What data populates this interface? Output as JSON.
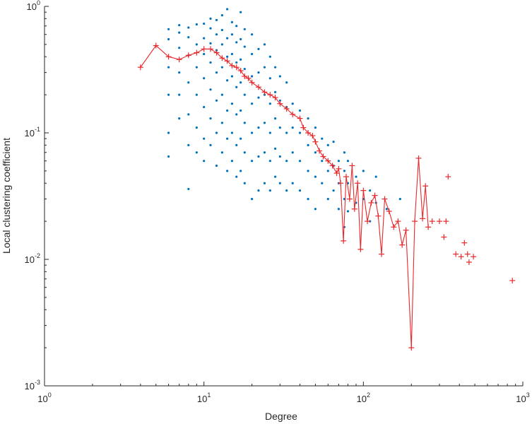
{
  "chart_data": {
    "type": "scatter",
    "xlabel": "Degree",
    "ylabel": "Local clustering coefficient",
    "xscale": "log",
    "yscale": "log",
    "xlim": [
      1,
      1000
    ],
    "ylim": [
      0.001,
      1
    ],
    "xticks": [
      {
        "value": 1,
        "base": "10",
        "exp": "0"
      },
      {
        "value": 10,
        "base": "10",
        "exp": "1"
      },
      {
        "value": 100,
        "base": "10",
        "exp": "2"
      },
      {
        "value": 1000,
        "base": "10",
        "exp": "3"
      }
    ],
    "yticks": [
      {
        "value": 0.001,
        "base": "10",
        "exp": "-3"
      },
      {
        "value": 0.01,
        "base": "10",
        "exp": "-2"
      },
      {
        "value": 0.1,
        "base": "10",
        "exp": "-1"
      },
      {
        "value": 1,
        "base": "10",
        "exp": "0"
      }
    ],
    "grid": false,
    "colors": {
      "scatter": "#0072BD",
      "mean": "#E8282B",
      "axis": "#262626"
    },
    "series": [
      {
        "style": "scatter",
        "points": [
          [
            6,
            0.065
          ],
          [
            6,
            0.1
          ],
          [
            6,
            0.2
          ],
          [
            6,
            0.33
          ],
          [
            6,
            0.55
          ],
          [
            6,
            0.66
          ],
          [
            7,
            0.13
          ],
          [
            7,
            0.2
          ],
          [
            7,
            0.3
          ],
          [
            7,
            0.47
          ],
          [
            7,
            0.62
          ],
          [
            7,
            0.71
          ],
          [
            8,
            0.036
          ],
          [
            8,
            0.08
          ],
          [
            8,
            0.14
          ],
          [
            8,
            0.25
          ],
          [
            8,
            0.41
          ],
          [
            8,
            0.57
          ],
          [
            8,
            0.68
          ],
          [
            9,
            0.07
          ],
          [
            9,
            0.11
          ],
          [
            9,
            0.2
          ],
          [
            9,
            0.33
          ],
          [
            9,
            0.5
          ],
          [
            9,
            0.72
          ],
          [
            10,
            0.06
          ],
          [
            10,
            0.09
          ],
          [
            10,
            0.16
          ],
          [
            10,
            0.27
          ],
          [
            10,
            0.42
          ],
          [
            10,
            0.56
          ],
          [
            10,
            0.73
          ],
          [
            11,
            0.08
          ],
          [
            11,
            0.13
          ],
          [
            11,
            0.22
          ],
          [
            11,
            0.36
          ],
          [
            11,
            0.51
          ],
          [
            11,
            0.67
          ],
          [
            11,
            0.8
          ],
          [
            12,
            0.055
          ],
          [
            12,
            0.1
          ],
          [
            12,
            0.18
          ],
          [
            12,
            0.3
          ],
          [
            12,
            0.45
          ],
          [
            12,
            0.6
          ],
          [
            12,
            0.78
          ],
          [
            13,
            0.07
          ],
          [
            13,
            0.12
          ],
          [
            13,
            0.2
          ],
          [
            13,
            0.33
          ],
          [
            13,
            0.5
          ],
          [
            13,
            0.65
          ],
          [
            13,
            0.85
          ],
          [
            14,
            0.05
          ],
          [
            14,
            0.09
          ],
          [
            14,
            0.15
          ],
          [
            14,
            0.26
          ],
          [
            14,
            0.4
          ],
          [
            14,
            0.56
          ],
          [
            14,
            0.95
          ],
          [
            15,
            0.06
          ],
          [
            15,
            0.1
          ],
          [
            15,
            0.17
          ],
          [
            15,
            0.28
          ],
          [
            15,
            0.42
          ],
          [
            15,
            0.6
          ],
          [
            15,
            0.75
          ],
          [
            16,
            0.045
          ],
          [
            16,
            0.08
          ],
          [
            16,
            0.14
          ],
          [
            16,
            0.23
          ],
          [
            16,
            0.36
          ],
          [
            16,
            0.52
          ],
          [
            16,
            0.7
          ],
          [
            17,
            0.05
          ],
          [
            17,
            0.09
          ],
          [
            17,
            0.15
          ],
          [
            17,
            0.25
          ],
          [
            17,
            0.38
          ],
          [
            17,
            0.55
          ],
          [
            17,
            0.9
          ],
          [
            18,
            0.04
          ],
          [
            18,
            0.07
          ],
          [
            18,
            0.12
          ],
          [
            18,
            0.2
          ],
          [
            18,
            0.32
          ],
          [
            18,
            0.48
          ],
          [
            18,
            0.66
          ],
          [
            20,
            0.03
          ],
          [
            20,
            0.06
          ],
          [
            20,
            0.1
          ],
          [
            20,
            0.17
          ],
          [
            20,
            0.28
          ],
          [
            20,
            0.42
          ],
          [
            20,
            0.6
          ],
          [
            22,
            0.035
          ],
          [
            22,
            0.065
          ],
          [
            22,
            0.11
          ],
          [
            22,
            0.19
          ],
          [
            22,
            0.3
          ],
          [
            22,
            0.46
          ],
          [
            24,
            0.04
          ],
          [
            24,
            0.07
          ],
          [
            24,
            0.12
          ],
          [
            24,
            0.2
          ],
          [
            24,
            0.33
          ],
          [
            24,
            0.5
          ],
          [
            26,
            0.035
          ],
          [
            26,
            0.06
          ],
          [
            26,
            0.1
          ],
          [
            26,
            0.17
          ],
          [
            26,
            0.27
          ],
          [
            26,
            0.4
          ],
          [
            28,
            0.045
          ],
          [
            28,
            0.075
          ],
          [
            28,
            0.13
          ],
          [
            28,
            0.21
          ],
          [
            28,
            0.33
          ],
          [
            30,
            0.04
          ],
          [
            30,
            0.065
          ],
          [
            30,
            0.11
          ],
          [
            30,
            0.18
          ],
          [
            30,
            0.28
          ],
          [
            33,
            0.035
          ],
          [
            33,
            0.06
          ],
          [
            33,
            0.1
          ],
          [
            33,
            0.16
          ],
          [
            33,
            0.25
          ],
          [
            36,
            0.04
          ],
          [
            36,
            0.07
          ],
          [
            36,
            0.11
          ],
          [
            36,
            0.17
          ],
          [
            40,
            0.035
          ],
          [
            40,
            0.06
          ],
          [
            40,
            0.1
          ],
          [
            40,
            0.15
          ],
          [
            45,
            0.03
          ],
          [
            45,
            0.05
          ],
          [
            45,
            0.08
          ],
          [
            45,
            0.13
          ],
          [
            50,
            0.025
          ],
          [
            50,
            0.045
          ],
          [
            50,
            0.07
          ],
          [
            50,
            0.11
          ],
          [
            55,
            0.04
          ],
          [
            55,
            0.06
          ],
          [
            55,
            0.09
          ],
          [
            60,
            0.03
          ],
          [
            60,
            0.05
          ],
          [
            60,
            0.08
          ],
          [
            65,
            0.035
          ],
          [
            65,
            0.055
          ],
          [
            65,
            0.085
          ],
          [
            70,
            0.025
          ],
          [
            70,
            0.04
          ],
          [
            70,
            0.06
          ],
          [
            76,
            0.018
          ],
          [
            76,
            0.03
          ],
          [
            76,
            0.05
          ],
          [
            76,
            0.07
          ],
          [
            80,
            0.024
          ],
          [
            80,
            0.04
          ],
          [
            80,
            0.06
          ],
          [
            90,
            0.028
          ],
          [
            90,
            0.045
          ],
          [
            100,
            0.03
          ],
          [
            100,
            0.05
          ],
          [
            110,
            0.02
          ],
          [
            110,
            0.035
          ],
          [
            120,
            0.028
          ],
          [
            120,
            0.045
          ],
          [
            140,
            0.025
          ],
          [
            170,
            0.03
          ]
        ]
      },
      {
        "style": "line-plus",
        "points": [
          [
            4,
            0.33
          ],
          [
            5,
            0.49
          ],
          [
            6,
            0.4
          ],
          [
            7,
            0.38
          ],
          [
            8,
            0.41
          ],
          [
            9,
            0.43
          ],
          [
            10,
            0.46
          ],
          [
            11,
            0.46
          ],
          [
            12,
            0.43
          ],
          [
            13,
            0.39
          ],
          [
            14,
            0.37
          ],
          [
            15,
            0.34
          ],
          [
            16,
            0.33
          ],
          [
            17,
            0.31
          ],
          [
            18,
            0.28
          ],
          [
            19,
            0.27
          ],
          [
            20,
            0.25
          ],
          [
            22,
            0.23
          ],
          [
            24,
            0.21
          ],
          [
            26,
            0.2
          ],
          [
            28,
            0.19
          ],
          [
            30,
            0.17
          ],
          [
            33,
            0.155
          ],
          [
            36,
            0.14
          ],
          [
            40,
            0.13
          ],
          [
            42,
            0.11
          ],
          [
            45,
            0.1
          ],
          [
            48,
            0.095
          ],
          [
            50,
            0.085
          ],
          [
            53,
            0.072
          ],
          [
            56,
            0.065
          ],
          [
            60,
            0.06
          ],
          [
            64,
            0.055
          ],
          [
            68,
            0.048
          ],
          [
            70,
            0.052
          ],
          [
            72,
            0.04
          ],
          [
            75,
            0.014
          ],
          [
            78,
            0.045
          ],
          [
            82,
            0.03
          ],
          [
            85,
            0.055
          ],
          [
            88,
            0.025
          ],
          [
            92,
            0.04
          ],
          [
            96,
            0.012
          ],
          [
            100,
            0.035
          ],
          [
            106,
            0.02
          ],
          [
            112,
            0.028
          ],
          [
            118,
            0.032
          ],
          [
            124,
            0.022
          ],
          [
            130,
            0.011
          ],
          [
            136,
            0.03
          ],
          [
            145,
            0.024
          ],
          [
            155,
            0.018
          ],
          [
            165,
            0.02
          ],
          [
            175,
            0.013
          ],
          [
            185,
            0.017
          ],
          [
            200,
            0.002
          ],
          [
            210,
            0.02
          ],
          [
            222,
            0.063
          ],
          [
            235,
            0.021
          ],
          [
            245,
            0.038
          ],
          [
            255,
            0.018
          ]
        ]
      },
      {
        "style": "plus",
        "points": [
          [
            340,
            0.045
          ],
          [
            270,
            0.02
          ],
          [
            300,
            0.02
          ],
          [
            330,
            0.02
          ],
          [
            320,
            0.015
          ],
          [
            380,
            0.011
          ],
          [
            410,
            0.0105
          ],
          [
            430,
            0.0135
          ],
          [
            450,
            0.011
          ],
          [
            460,
            0.0095
          ],
          [
            490,
            0.0105
          ],
          [
            860,
            0.0068
          ]
        ]
      }
    ]
  }
}
